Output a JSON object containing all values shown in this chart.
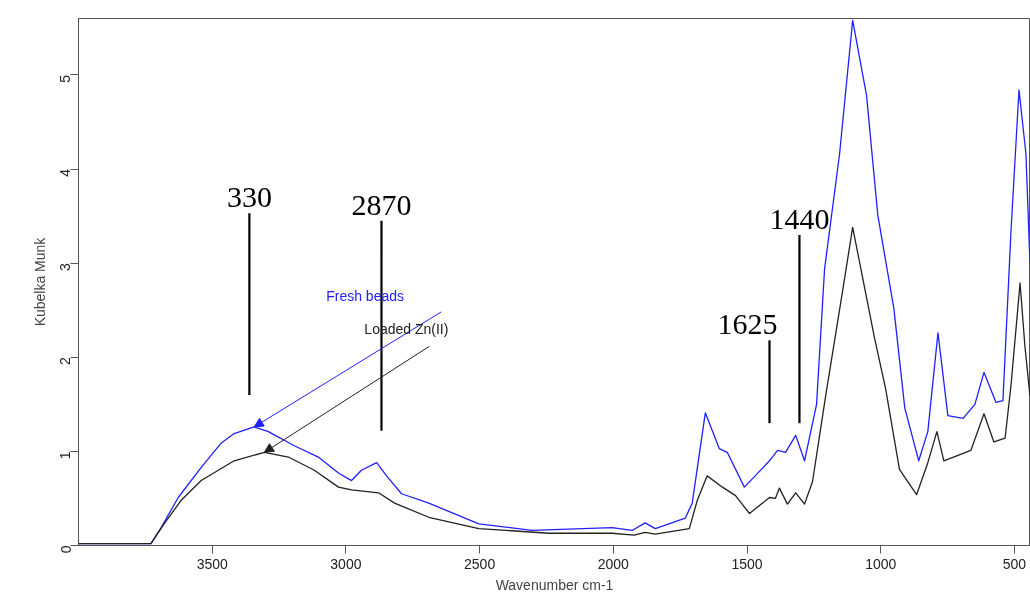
{
  "chart_data": {
    "type": "line",
    "xlabel": "Wavenumber cm-1",
    "ylabel": "Kubelka Munk",
    "xlim": [
      4000,
      440
    ],
    "ylim": [
      0,
      5.6
    ],
    "xticks": [
      3500,
      3000,
      2500,
      2000,
      1500,
      1000,
      500
    ],
    "yticks": [
      0,
      1,
      2,
      3,
      4,
      5
    ],
    "grid": false,
    "legend": false,
    "line_style": "solid",
    "marker": "none",
    "series": [
      {
        "name": "Fresh beads",
        "color": "#2020ff",
        "x": [
          4000,
          3729,
          3691,
          3627,
          3541,
          3466,
          3418,
          3343,
          3290,
          3193,
          3103,
          3028,
          2979,
          2942,
          2885,
          2848,
          2792,
          2690,
          2503,
          2304,
          2005,
          1930,
          1881,
          1843,
          1731,
          1705,
          1656,
          1604,
          1574,
          1510,
          1416,
          1386,
          1356,
          1318,
          1285,
          1240,
          1210,
          1154,
          1105,
          1053,
          1011,
          951,
          910,
          858,
          824,
          786,
          749,
          692,
          648,
          614,
          569,
          543,
          513,
          483,
          457,
          442
        ],
        "values": [
          0.02,
          0.02,
          0.19,
          0.51,
          0.83,
          1.09,
          1.19,
          1.26,
          1.21,
          1.06,
          0.94,
          0.77,
          0.69,
          0.8,
          0.88,
          0.74,
          0.55,
          0.45,
          0.23,
          0.16,
          0.19,
          0.16,
          0.24,
          0.18,
          0.29,
          0.45,
          1.41,
          1.03,
          0.99,
          0.62,
          0.9,
          1.01,
          0.99,
          1.17,
          0.9,
          1.5,
          2.94,
          4.16,
          5.58,
          4.78,
          3.51,
          2.52,
          1.46,
          0.9,
          1.21,
          2.26,
          1.38,
          1.35,
          1.5,
          1.84,
          1.52,
          1.54,
          3.34,
          4.84,
          4.16,
          3.0
        ]
      },
      {
        "name": "Loaded Zn(II)",
        "color": "#222222",
        "x": [
          4000,
          3729,
          3680,
          3616,
          3541,
          3418,
          3305,
          3215,
          3118,
          3028,
          2979,
          2878,
          2818,
          2690,
          2503,
          2241,
          2005,
          1922,
          1881,
          1843,
          1716,
          1686,
          1649,
          1592,
          1543,
          1491,
          1416,
          1394,
          1379,
          1349,
          1318,
          1285,
          1255,
          1206,
          1139,
          1105,
          1068,
          1023,
          982,
          930,
          866,
          824,
          790,
          764,
          663,
          614,
          577,
          535,
          513,
          479,
          461,
          442
        ],
        "values": [
          0.02,
          0.02,
          0.23,
          0.48,
          0.69,
          0.9,
          0.99,
          0.94,
          0.8,
          0.62,
          0.59,
          0.56,
          0.45,
          0.3,
          0.18,
          0.13,
          0.13,
          0.11,
          0.14,
          0.12,
          0.18,
          0.48,
          0.74,
          0.62,
          0.53,
          0.34,
          0.51,
          0.5,
          0.61,
          0.44,
          0.56,
          0.44,
          0.68,
          1.59,
          2.77,
          3.38,
          2.85,
          2.2,
          1.67,
          0.81,
          0.54,
          0.88,
          1.21,
          0.9,
          1.01,
          1.4,
          1.1,
          1.14,
          1.7,
          2.79,
          2.12,
          1.59
        ]
      },
      {
        "color": "#000000",
        "x": [
          3361,
          3361
        ],
        "values": [
          1.6,
          3.53
        ]
      },
      {
        "color": "#000000",
        "x": [
          2867,
          2867
        ],
        "values": [
          1.22,
          3.45
        ]
      },
      {
        "color": "#000000",
        "x": [
          1416,
          1416
        ],
        "values": [
          1.3,
          2.18
        ]
      },
      {
        "color": "#000000",
        "x": [
          1304,
          1304
        ],
        "values": [
          1.3,
          3.3
        ]
      }
    ],
    "annotations": [
      {
        "text": "330",
        "x": 3361,
        "y": 3.53
      },
      {
        "text": "2870",
        "x": 2867,
        "y": 3.45
      },
      {
        "text": "1625",
        "x": 1416,
        "y": 2.18
      },
      {
        "text": "1440",
        "x": 1304,
        "y": 3.3
      }
    ]
  }
}
